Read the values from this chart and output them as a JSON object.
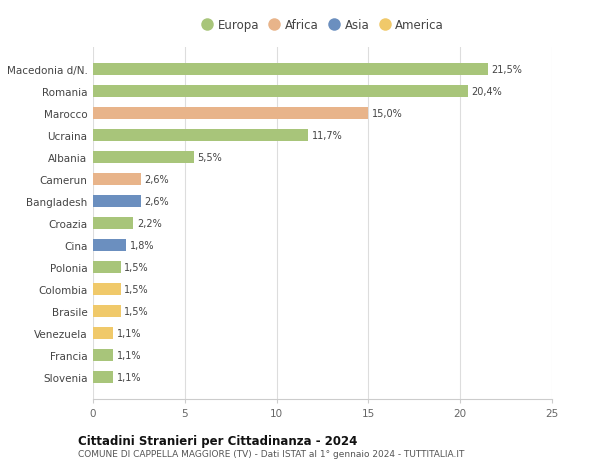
{
  "categories": [
    "Macedonia d/N.",
    "Romania",
    "Marocco",
    "Ucraina",
    "Albania",
    "Camerun",
    "Bangladesh",
    "Croazia",
    "Cina",
    "Polonia",
    "Colombia",
    "Brasile",
    "Venezuela",
    "Francia",
    "Slovenia"
  ],
  "values": [
    21.5,
    20.4,
    15.0,
    11.7,
    5.5,
    2.6,
    2.6,
    2.2,
    1.8,
    1.5,
    1.5,
    1.5,
    1.1,
    1.1,
    1.1
  ],
  "labels": [
    "21,5%",
    "20,4%",
    "15,0%",
    "11,7%",
    "5,5%",
    "2,6%",
    "2,6%",
    "2,2%",
    "1,8%",
    "1,5%",
    "1,5%",
    "1,5%",
    "1,1%",
    "1,1%",
    "1,1%"
  ],
  "continents": [
    "Europa",
    "Europa",
    "Africa",
    "Europa",
    "Europa",
    "Africa",
    "Asia",
    "Europa",
    "Asia",
    "Europa",
    "America",
    "America",
    "America",
    "Europa",
    "Europa"
  ],
  "colors": {
    "Europa": "#a8c57a",
    "Africa": "#e8b48a",
    "Asia": "#6b8fbf",
    "America": "#f0c96a"
  },
  "legend_items": [
    "Europa",
    "Africa",
    "Asia",
    "America"
  ],
  "xlim": [
    0,
    25
  ],
  "xticks": [
    0,
    5,
    10,
    15,
    20,
    25
  ],
  "title1": "Cittadini Stranieri per Cittadinanza - 2024",
  "title2": "COMUNE DI CAPPELLA MAGGIORE (TV) - Dati ISTAT al 1° gennaio 2024 - TUTTITALIA.IT",
  "background_color": "#ffffff",
  "grid_color": "#dddddd",
  "bar_height": 0.55,
  "figsize": [
    6.0,
    4.6
  ],
  "dpi": 100
}
